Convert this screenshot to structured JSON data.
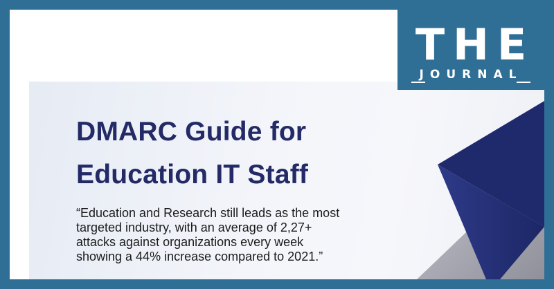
{
  "title": {
    "line1": "DMARC Guide for",
    "line2": "Education IT Staff"
  },
  "quote": {
    "line1": "“Education and Research still leads as the most",
    "line2": "targeted industry, with an average of 2,27+",
    "line3": "attacks against organizations every week",
    "line4": "showing a 44% increase compared to 2021.”"
  },
  "logo": {
    "letter1": "T",
    "letter2": "H",
    "letter3": "E",
    "subtitle": "JOURNAL"
  },
  "colors": {
    "frame": "#2f6f96",
    "title": "#232a66",
    "shape_dark": "#1f2c6e",
    "shape_mid": "#2f3f8c",
    "shape_grey": "#a6a7b1"
  }
}
